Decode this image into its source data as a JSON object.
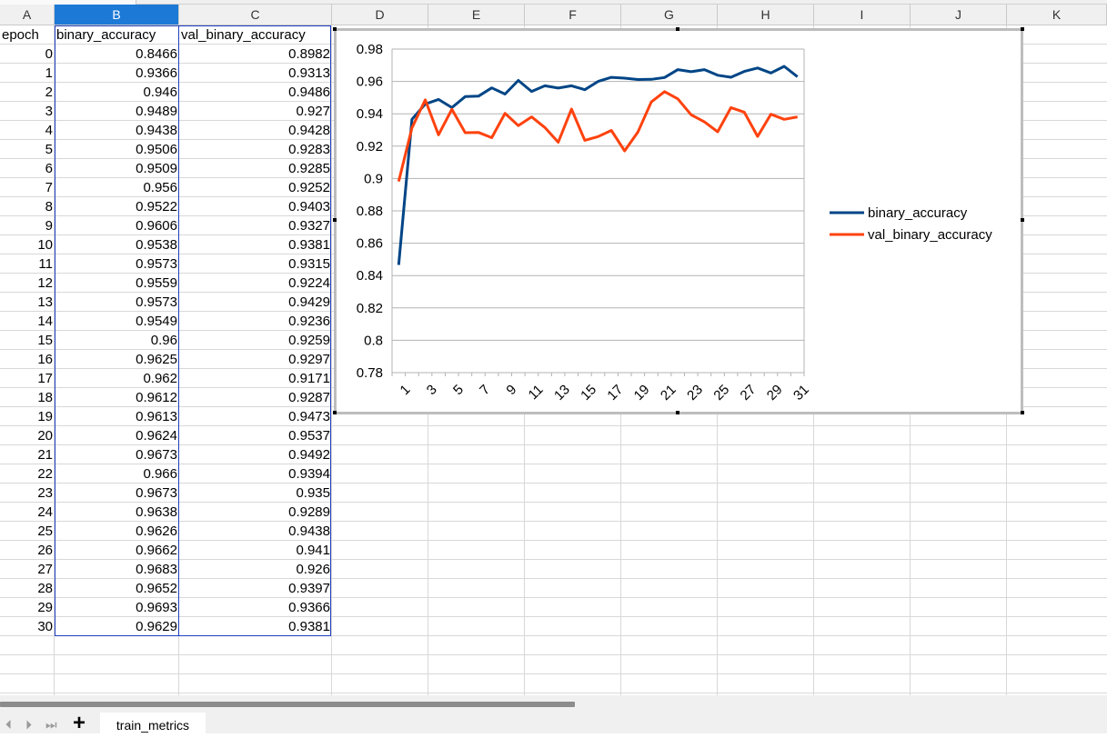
{
  "sheet": {
    "column_headers": [
      "A",
      "B",
      "C",
      "D",
      "E",
      "F",
      "G",
      "H",
      "I",
      "J",
      "K"
    ],
    "selected_column": "B",
    "header_row": [
      "epoch",
      "binary_accuracy",
      "val_binary_accuracy"
    ],
    "rows": [
      [
        "0",
        "0.8466",
        "0.8982"
      ],
      [
        "1",
        "0.9366",
        "0.9313"
      ],
      [
        "2",
        "0.946",
        "0.9486"
      ],
      [
        "3",
        "0.9489",
        "0.927"
      ],
      [
        "4",
        "0.9438",
        "0.9428"
      ],
      [
        "5",
        "0.9506",
        "0.9283"
      ],
      [
        "6",
        "0.9509",
        "0.9285"
      ],
      [
        "7",
        "0.956",
        "0.9252"
      ],
      [
        "8",
        "0.9522",
        "0.9403"
      ],
      [
        "9",
        "0.9606",
        "0.9327"
      ],
      [
        "10",
        "0.9538",
        "0.9381"
      ],
      [
        "11",
        "0.9573",
        "0.9315"
      ],
      [
        "12",
        "0.9559",
        "0.9224"
      ],
      [
        "13",
        "0.9573",
        "0.9429"
      ],
      [
        "14",
        "0.9549",
        "0.9236"
      ],
      [
        "15",
        "0.96",
        "0.9259"
      ],
      [
        "16",
        "0.9625",
        "0.9297"
      ],
      [
        "17",
        "0.962",
        "0.9171"
      ],
      [
        "18",
        "0.9612",
        "0.9287"
      ],
      [
        "19",
        "0.9613",
        "0.9473"
      ],
      [
        "20",
        "0.9624",
        "0.9537"
      ],
      [
        "21",
        "0.9673",
        "0.9492"
      ],
      [
        "22",
        "0.966",
        "0.9394"
      ],
      [
        "23",
        "0.9673",
        "0.935"
      ],
      [
        "24",
        "0.9638",
        "0.9289"
      ],
      [
        "25",
        "0.9626",
        "0.9438"
      ],
      [
        "26",
        "0.9662",
        "0.941"
      ],
      [
        "27",
        "0.9683",
        "0.926"
      ],
      [
        "28",
        "0.9652",
        "0.9397"
      ],
      [
        "29",
        "0.9693",
        "0.9366"
      ],
      [
        "30",
        "0.9629",
        "0.9381"
      ]
    ]
  },
  "chart_data": {
    "type": "line",
    "title": "",
    "xlabel": "",
    "ylabel": "",
    "categories": [
      "1",
      "2",
      "3",
      "4",
      "5",
      "6",
      "7",
      "8",
      "9",
      "10",
      "11",
      "12",
      "13",
      "14",
      "15",
      "16",
      "17",
      "18",
      "19",
      "20",
      "21",
      "22",
      "23",
      "24",
      "25",
      "26",
      "27",
      "28",
      "29",
      "30",
      "31"
    ],
    "x_tick_labels": [
      "1",
      "3",
      "5",
      "7",
      "9",
      "11",
      "13",
      "15",
      "17",
      "19",
      "21",
      "23",
      "25",
      "27",
      "29",
      "31"
    ],
    "ylim": [
      0.78,
      0.98
    ],
    "y_ticks": [
      "0.98",
      "0.96",
      "0.94",
      "0.92",
      "0.9",
      "0.88",
      "0.86",
      "0.84",
      "0.82",
      "0.8",
      "0.78"
    ],
    "grid": true,
    "legend_position": "right",
    "series": [
      {
        "name": "binary_accuracy",
        "color": "#004586",
        "values": [
          0.8466,
          0.9366,
          0.946,
          0.9489,
          0.9438,
          0.9506,
          0.9509,
          0.956,
          0.9522,
          0.9606,
          0.9538,
          0.9573,
          0.9559,
          0.9573,
          0.9549,
          0.96,
          0.9625,
          0.962,
          0.9612,
          0.9613,
          0.9624,
          0.9673,
          0.966,
          0.9673,
          0.9638,
          0.9626,
          0.9662,
          0.9683,
          0.9652,
          0.9693,
          0.9629
        ]
      },
      {
        "name": "val_binary_accuracy",
        "color": "#ff420e",
        "values": [
          0.8982,
          0.9313,
          0.9486,
          0.927,
          0.9428,
          0.9283,
          0.9285,
          0.9252,
          0.9403,
          0.9327,
          0.9381,
          0.9315,
          0.9224,
          0.9429,
          0.9236,
          0.9259,
          0.9297,
          0.9171,
          0.9287,
          0.9473,
          0.9537,
          0.9492,
          0.9394,
          0.935,
          0.9289,
          0.9438,
          0.941,
          0.926,
          0.9397,
          0.9366,
          0.9381
        ]
      }
    ]
  },
  "footer": {
    "nav_first": "⏴",
    "nav_prev": "⏵",
    "nav_next": "⏭",
    "add_sheet": "+",
    "sheet_tab": "train_metrics"
  }
}
